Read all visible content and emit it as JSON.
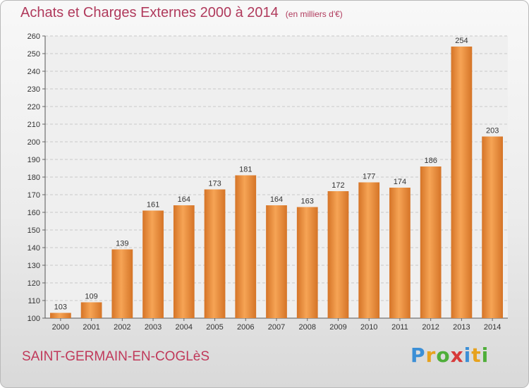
{
  "header": {
    "title": "Achats et Charges Externes 2000 à 2014",
    "unit_note": "(en milliers d'€)"
  },
  "footer": {
    "commune_name": "SAINT-GERMAIN-EN-COGLèS",
    "logo_text": "Proxiti"
  },
  "colors": {
    "title": "#b03a5c",
    "bar_light": "#f6a455",
    "bar_dark": "#d57427"
  },
  "chart_data": {
    "type": "bar",
    "title": "Achats et Charges Externes 2000 à 2014",
    "xlabel": "",
    "ylabel": "",
    "categories": [
      "2000",
      "2001",
      "2002",
      "2003",
      "2004",
      "2005",
      "2006",
      "2007",
      "2008",
      "2009",
      "2010",
      "2011",
      "2012",
      "2013",
      "2014"
    ],
    "values": [
      103,
      109,
      139,
      161,
      164,
      173,
      181,
      164,
      163,
      172,
      177,
      174,
      186,
      254,
      203
    ],
    "ylim": [
      100,
      260
    ],
    "yticks": [
      100,
      110,
      120,
      130,
      140,
      150,
      160,
      170,
      180,
      190,
      200,
      210,
      220,
      230,
      240,
      250,
      260
    ],
    "grid": true,
    "data_labels": true
  }
}
